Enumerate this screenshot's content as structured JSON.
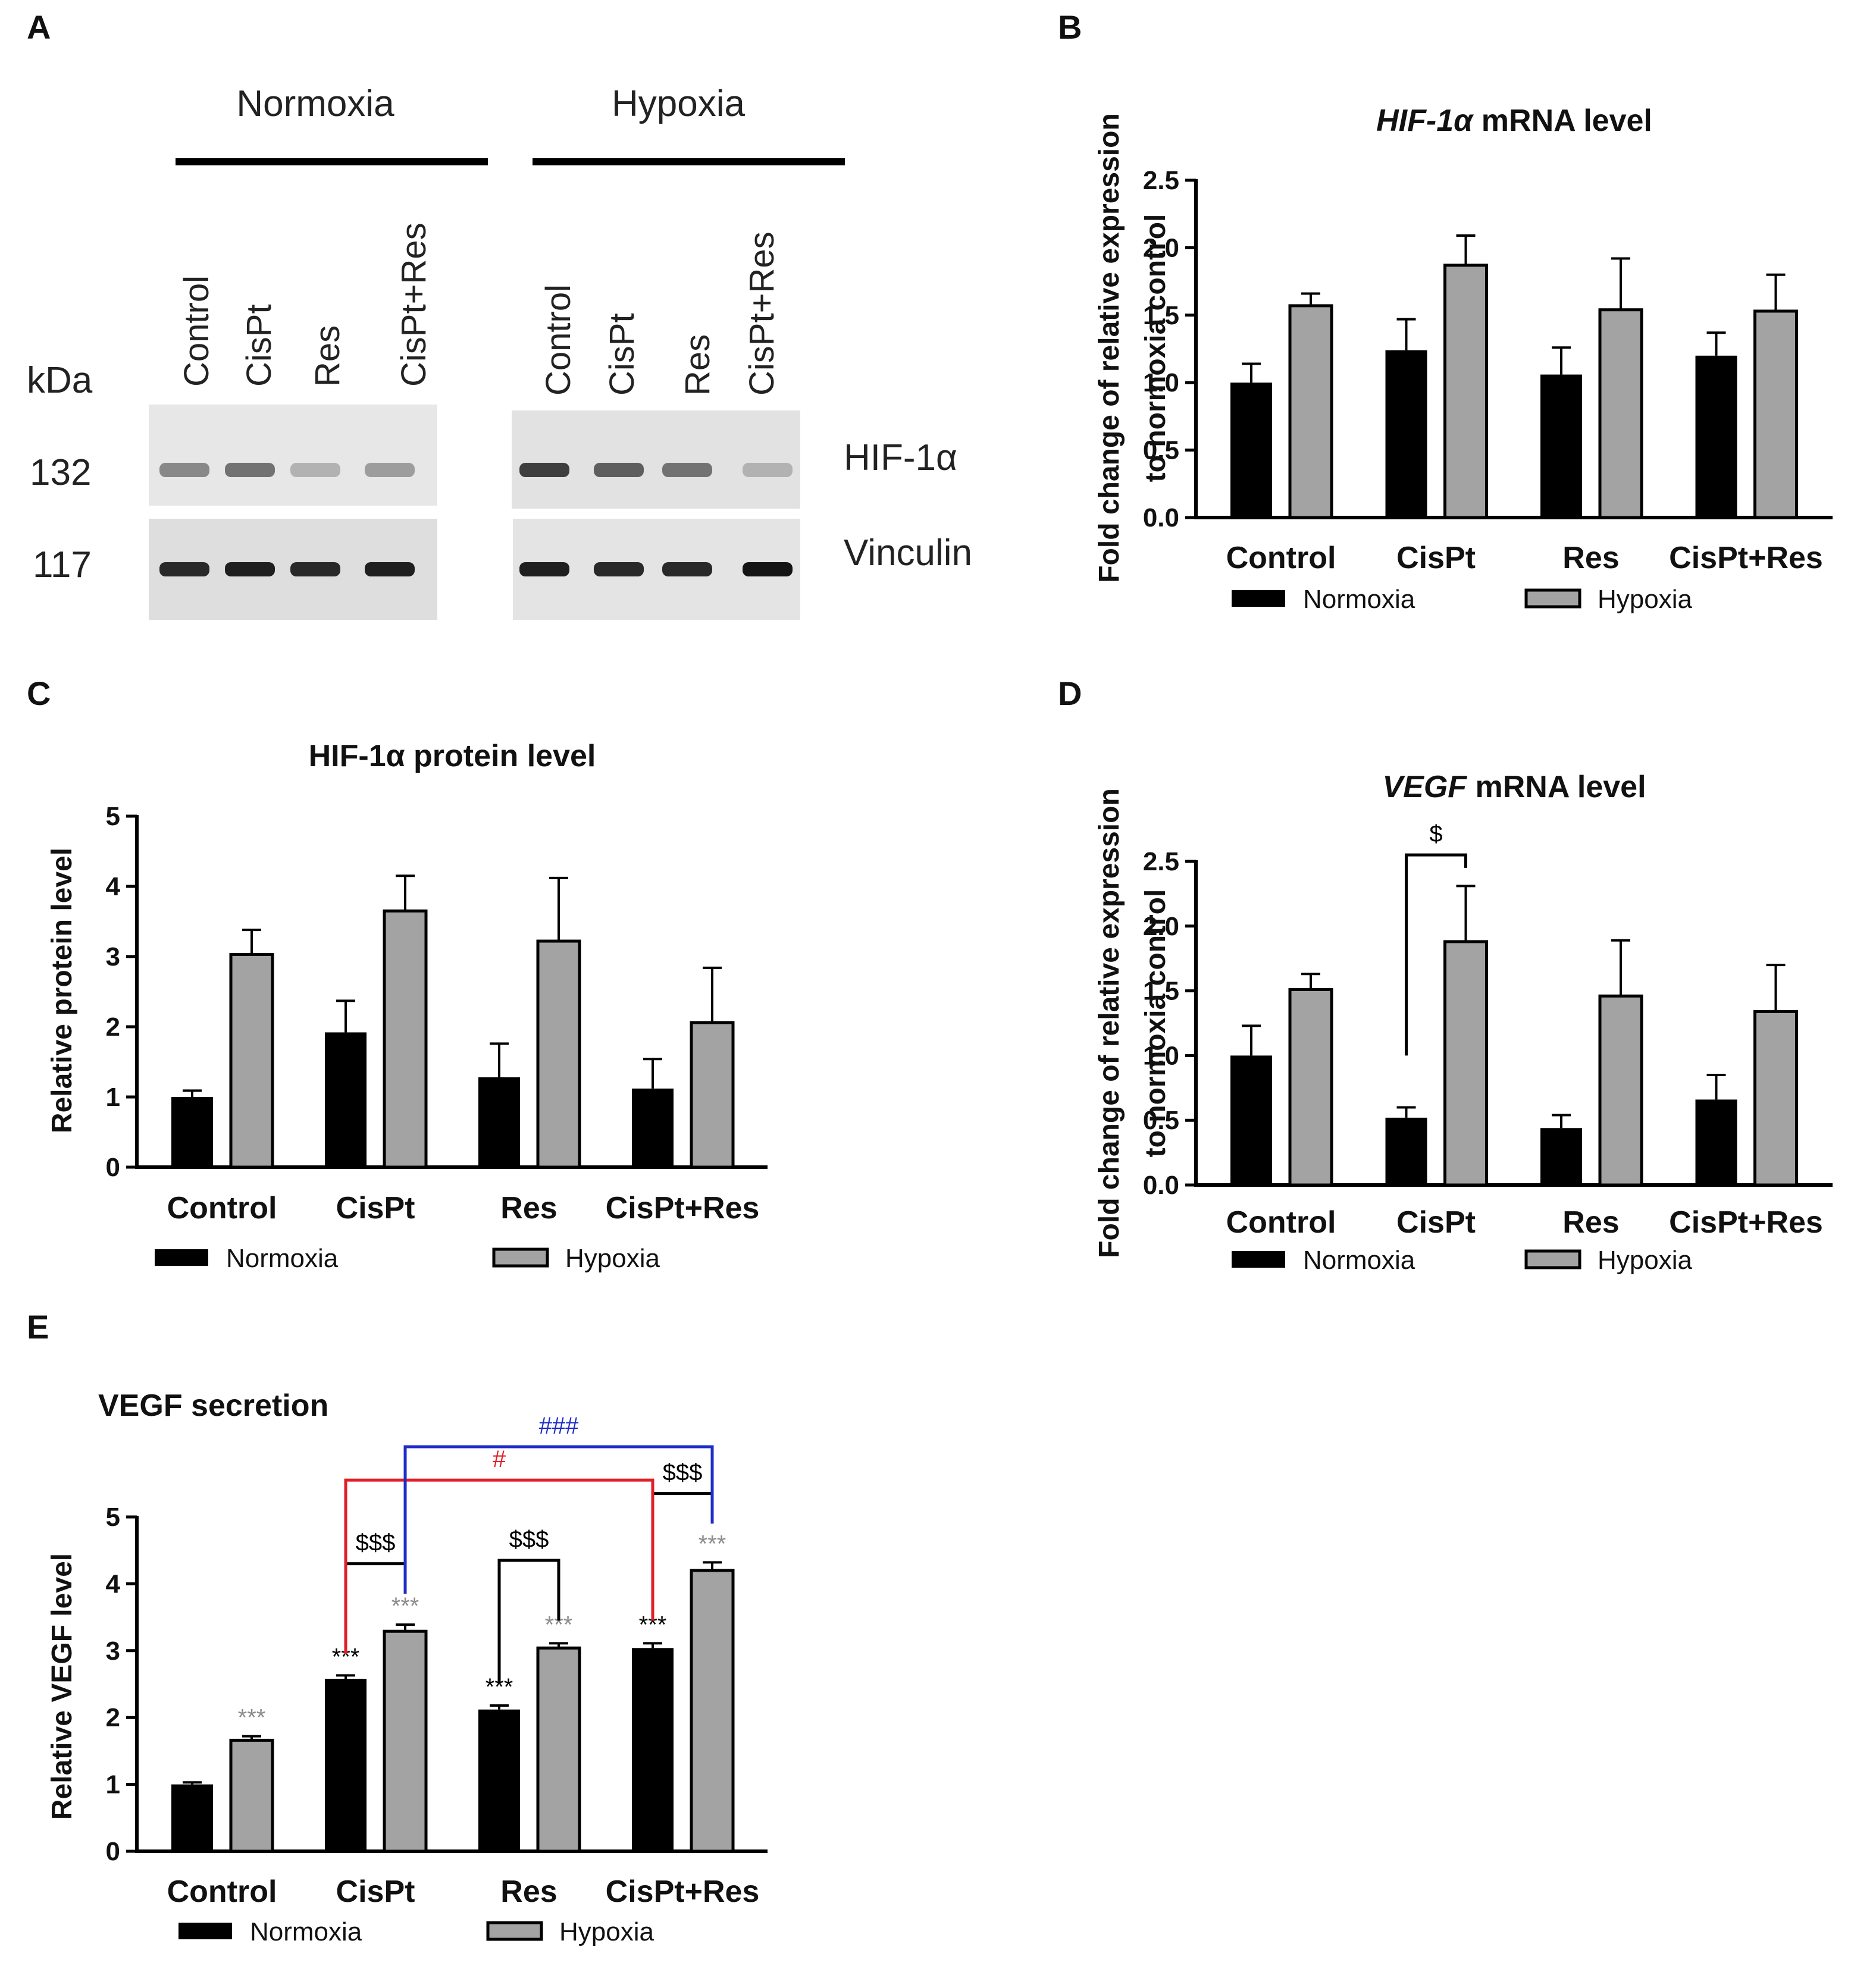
{
  "panel_letters": [
    "A",
    "B",
    "C",
    "D",
    "E"
  ],
  "colors": {
    "normoxia": "#000000",
    "hypoxia": "#a3a3a3",
    "hypoxia_star": "#8c8c8c",
    "red_bracket": "#e21f26",
    "blue_bracket": "#1e2dc8"
  },
  "blot": {
    "groups": [
      "Normoxia",
      "Hypoxia"
    ],
    "lanes": [
      "Control",
      "CisPt",
      "Res",
      "CisPt+Res"
    ],
    "kda_label": "kDa",
    "rows": [
      {
        "kda": "132",
        "protein": "HIF-1α",
        "normoxia_intensity": [
          0.45,
          0.55,
          0.25,
          0.35
        ],
        "hypoxia_intensity": [
          0.8,
          0.65,
          0.55,
          0.25
        ]
      },
      {
        "kda": "117",
        "protein": "Vinculin",
        "normoxia_intensity": [
          0.9,
          0.95,
          0.9,
          0.95
        ],
        "hypoxia_intensity": [
          0.95,
          0.9,
          0.9,
          1.0
        ]
      }
    ]
  },
  "legend": {
    "normoxia": "Normoxia",
    "hypoxia": "Hypoxia"
  },
  "chart_data": [
    {
      "id": "B",
      "type": "bar",
      "title": "HIF-1α mRNA level",
      "title_parts": [
        {
          "t": "HIF-1α",
          "italic": true
        },
        {
          "t": "  mRNA level",
          "italic": false
        }
      ],
      "ylabel": "Fold change of relative expression",
      "ylabel2": "to normoxia control",
      "categories": [
        "Control",
        "CisPt",
        "Res",
        "CisPt+Res"
      ],
      "ylim": [
        0,
        2.5
      ],
      "yticks": [
        "0.0",
        "0.5",
        "1.0",
        "1.5",
        "2.0",
        "2.5"
      ],
      "series": [
        {
          "name": "Normoxia",
          "values": [
            1.0,
            1.24,
            1.06,
            1.2
          ],
          "errors": [
            0.14,
            0.23,
            0.2,
            0.17
          ]
        },
        {
          "name": "Hypoxia",
          "values": [
            1.57,
            1.87,
            1.54,
            1.53
          ],
          "errors": [
            0.09,
            0.22,
            0.38,
            0.27
          ]
        }
      ],
      "annotations": []
    },
    {
      "id": "C",
      "type": "bar",
      "title": "HIF-1α protein level",
      "title_parts": [
        {
          "t": "HIF-1α protein level",
          "italic": false
        }
      ],
      "ylabel": "Relative protein level",
      "categories": [
        "Control",
        "CisPt",
        "Res",
        "CisPt+Res"
      ],
      "ylim": [
        0,
        5
      ],
      "yticks": [
        "0",
        "1",
        "2",
        "3",
        "4",
        "5"
      ],
      "series": [
        {
          "name": "Normoxia",
          "values": [
            1.0,
            1.92,
            1.28,
            1.12
          ],
          "errors": [
            0.09,
            0.45,
            0.48,
            0.42
          ]
        },
        {
          "name": "Hypoxia",
          "values": [
            3.03,
            3.65,
            3.22,
            2.06
          ],
          "errors": [
            0.35,
            0.5,
            0.9,
            0.78
          ]
        }
      ],
      "annotations": []
    },
    {
      "id": "D",
      "type": "bar",
      "title": "VEGF mRNA level",
      "title_parts": [
        {
          "t": "VEGF",
          "italic": true
        },
        {
          "t": " mRNA level",
          "italic": false
        }
      ],
      "ylabel": "Fold change of relative expression",
      "ylabel2": "to normoxia control",
      "categories": [
        "Control",
        "CisPt",
        "Res",
        "CisPt+Res"
      ],
      "ylim": [
        0,
        2.5
      ],
      "yticks": [
        "0.0",
        "0.5",
        "1.0",
        "1.5",
        "2.0",
        "2.5"
      ],
      "series": [
        {
          "name": "Normoxia",
          "values": [
            1.0,
            0.52,
            0.44,
            0.66
          ],
          "errors": [
            0.23,
            0.08,
            0.1,
            0.19
          ]
        },
        {
          "name": "Hypoxia",
          "values": [
            1.51,
            1.88,
            1.46,
            1.34
          ],
          "errors": [
            0.12,
            0.43,
            0.43,
            0.36
          ]
        }
      ],
      "annotations": [
        {
          "text": "$",
          "from": [
            1,
            0
          ],
          "to": [
            1,
            1
          ],
          "level": 2.55,
          "drop_from": 1.0,
          "drop_to": 2.45,
          "color": "#000000"
        }
      ]
    },
    {
      "id": "E",
      "type": "bar",
      "title": "VEGF secretion",
      "title_parts": [
        {
          "t": "VEGF secretion",
          "italic": false
        }
      ],
      "ylabel": "Relative VEGF level",
      "categories": [
        "Control",
        "CisPt",
        "Res",
        "CisPt+Res"
      ],
      "ylim": [
        0,
        5
      ],
      "yticks": [
        "0",
        "1",
        "2",
        "3",
        "4",
        "5"
      ],
      "series": [
        {
          "name": "Normoxia",
          "values": [
            1.0,
            2.58,
            2.12,
            3.04
          ],
          "errors": [
            0.03,
            0.05,
            0.06,
            0.07
          ]
        },
        {
          "name": "Hypoxia",
          "values": [
            1.66,
            3.29,
            3.04,
            4.2
          ],
          "errors": [
            0.06,
            0.1,
            0.07,
            0.12
          ]
        }
      ],
      "star_labels": [
        {
          "text": "***",
          "cat": 0,
          "series": 1
        },
        {
          "text": "***",
          "cat": 1,
          "series": 0
        },
        {
          "text": "***",
          "cat": 1,
          "series": 1
        },
        {
          "text": "***",
          "cat": 2,
          "series": 0
        },
        {
          "text": "***",
          "cat": 2,
          "series": 1
        },
        {
          "text": "***",
          "cat": 3,
          "series": 0
        },
        {
          "text": "***",
          "cat": 3,
          "series": 1
        }
      ],
      "annotations": [
        {
          "text": "$$$",
          "from": [
            1,
            0
          ],
          "to": [
            1,
            1
          ],
          "level": 4.3,
          "drop_from": 2.95,
          "drop_to": 3.95,
          "color": "#000000"
        },
        {
          "text": "$$$",
          "from": [
            2,
            0
          ],
          "to": [
            2,
            1
          ],
          "level": 4.35,
          "drop_from": 2.5,
          "drop_to": 3.45,
          "color": "#000000"
        },
        {
          "text": "$$$",
          "from": [
            3,
            0
          ],
          "to": [
            3,
            1
          ],
          "level": 5.35,
          "drop_from": 3.45,
          "drop_to": 5.1,
          "color": "#000000"
        },
        {
          "text": "#",
          "from": [
            1,
            0
          ],
          "to": [
            3,
            0
          ],
          "level": 5.55,
          "drop_from": 2.95,
          "drop_to": 3.45,
          "color": "#e21f26"
        },
        {
          "text": "###",
          "from": [
            1,
            1
          ],
          "to": [
            3,
            1
          ],
          "level": 6.05,
          "drop_from": 3.85,
          "drop_to": 4.9,
          "color": "#1e2dc8"
        }
      ]
    }
  ]
}
